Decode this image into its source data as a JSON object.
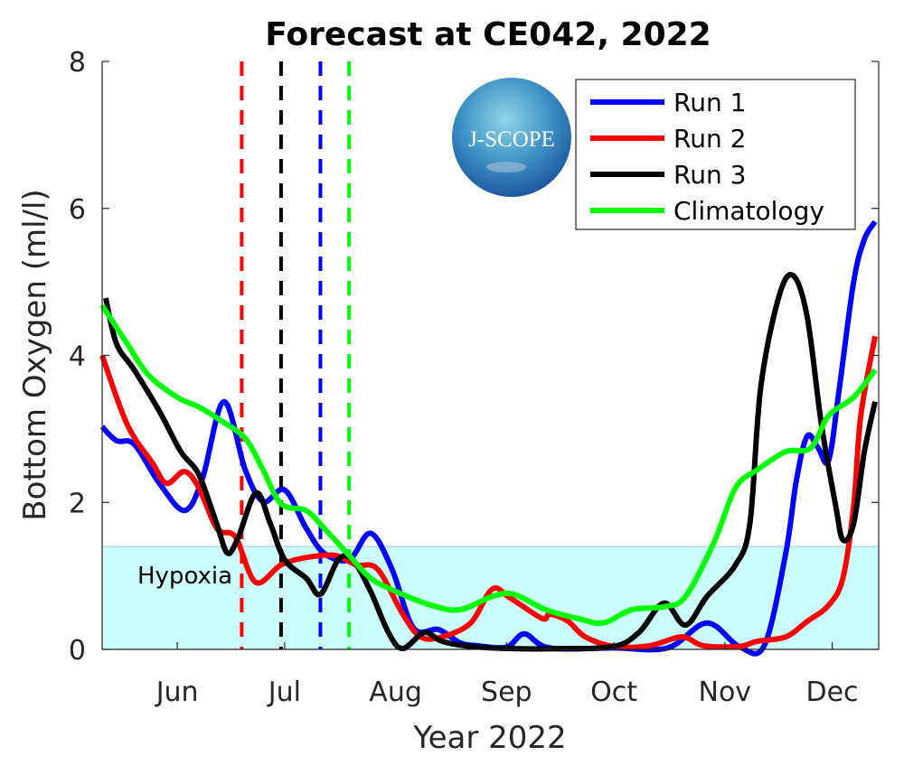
{
  "chart_data": {
    "type": "line",
    "title": "Forecast at CE042, 2022",
    "xlabel": "Year 2022",
    "ylabel": "Bottom Oxygen (ml/l)",
    "xlim": [
      "2022-05-11",
      "2022-12-14"
    ],
    "ylim": [
      0,
      8
    ],
    "yticks": [
      0,
      2,
      4,
      6,
      8
    ],
    "xticks": [
      {
        "date": "2022-06-01",
        "label": "Jun"
      },
      {
        "date": "2022-07-01",
        "label": "Jul"
      },
      {
        "date": "2022-08-01",
        "label": "Aug"
      },
      {
        "date": "2022-09-01",
        "label": "Sep"
      },
      {
        "date": "2022-10-01",
        "label": "Oct"
      },
      {
        "date": "2022-11-01",
        "label": "Nov"
      },
      {
        "date": "2022-12-01",
        "label": "Dec"
      }
    ],
    "grid": false,
    "legend_position": "top-right",
    "hypoxia": {
      "label": "Hypoxia",
      "threshold": 1.4,
      "color": "#ccffff"
    },
    "forecast_start_lines": [
      {
        "date": "2022-06-19",
        "color": "#ff0000"
      },
      {
        "date": "2022-06-30",
        "color": "#000000"
      },
      {
        "date": "2022-07-11",
        "color": "#0000ff"
      },
      {
        "date": "2022-07-19",
        "color": "#00ff00"
      }
    ],
    "series": [
      {
        "name": "Run 1",
        "color": "#0000ff",
        "points": [
          [
            "2022-05-11",
            3.03
          ],
          [
            "2022-05-15",
            2.84
          ],
          [
            "2022-05-20",
            2.79
          ],
          [
            "2022-05-27",
            2.26
          ],
          [
            "2022-06-03",
            1.89
          ],
          [
            "2022-06-08",
            2.32
          ],
          [
            "2022-06-14",
            3.37
          ],
          [
            "2022-06-20",
            2.44
          ],
          [
            "2022-06-25",
            2.01
          ],
          [
            "2022-07-01",
            2.17
          ],
          [
            "2022-07-07",
            1.65
          ],
          [
            "2022-07-12",
            1.31
          ],
          [
            "2022-07-19",
            1.22
          ],
          [
            "2022-07-25",
            1.58
          ],
          [
            "2022-07-31",
            1.09
          ],
          [
            "2022-08-06",
            0.29
          ],
          [
            "2022-08-13",
            0.27
          ],
          [
            "2022-08-19",
            0.09
          ],
          [
            "2022-08-24",
            0.05
          ],
          [
            "2022-09-01",
            0.03
          ],
          [
            "2022-09-06",
            0.21
          ],
          [
            "2022-09-13",
            0.02
          ],
          [
            "2022-10-01",
            0.02
          ],
          [
            "2022-10-16",
            0.02
          ],
          [
            "2022-10-27",
            0.36
          ],
          [
            "2022-11-05",
            0.04
          ],
          [
            "2022-11-12",
            0.05
          ],
          [
            "2022-11-18",
            1.3
          ],
          [
            "2022-11-21",
            2.3
          ],
          [
            "2022-11-24",
            2.9
          ],
          [
            "2022-11-27",
            2.75
          ],
          [
            "2022-11-30",
            2.57
          ],
          [
            "2022-12-03",
            3.55
          ],
          [
            "2022-12-07",
            5.0
          ],
          [
            "2022-12-10",
            5.58
          ],
          [
            "2022-12-13",
            5.82
          ]
        ]
      },
      {
        "name": "Run 2",
        "color": "#ff0000",
        "points": [
          [
            "2022-05-11",
            4.0
          ],
          [
            "2022-05-18",
            3.06
          ],
          [
            "2022-05-25",
            2.54
          ],
          [
            "2022-05-29",
            2.26
          ],
          [
            "2022-06-03",
            2.42
          ],
          [
            "2022-06-07",
            2.2
          ],
          [
            "2022-06-12",
            1.65
          ],
          [
            "2022-06-16",
            1.58
          ],
          [
            "2022-06-18",
            1.46
          ],
          [
            "2022-06-23",
            0.91
          ],
          [
            "2022-06-30",
            1.15
          ],
          [
            "2022-07-07",
            1.25
          ],
          [
            "2022-07-15",
            1.28
          ],
          [
            "2022-07-21",
            1.15
          ],
          [
            "2022-07-27",
            1.09
          ],
          [
            "2022-08-03",
            0.48
          ],
          [
            "2022-08-08",
            0.17
          ],
          [
            "2022-08-14",
            0.17
          ],
          [
            "2022-08-22",
            0.36
          ],
          [
            "2022-08-28",
            0.82
          ],
          [
            "2022-09-02",
            0.7
          ],
          [
            "2022-09-11",
            0.42
          ],
          [
            "2022-09-13",
            0.48
          ],
          [
            "2022-09-18",
            0.39
          ],
          [
            "2022-09-23",
            0.17
          ],
          [
            "2022-10-01",
            0.04
          ],
          [
            "2022-10-11",
            0.05
          ],
          [
            "2022-10-20",
            0.17
          ],
          [
            "2022-10-26",
            0.05
          ],
          [
            "2022-11-05",
            0.04
          ],
          [
            "2022-11-10",
            0.11
          ],
          [
            "2022-11-18",
            0.17
          ],
          [
            "2022-11-24",
            0.38
          ],
          [
            "2022-11-30",
            0.6
          ],
          [
            "2022-12-04",
            0.97
          ],
          [
            "2022-12-07",
            1.95
          ],
          [
            "2022-12-09",
            3.18
          ],
          [
            "2022-12-13",
            4.26
          ]
        ]
      },
      {
        "name": "Run 3",
        "color": "#000000",
        "points": [
          [
            "2022-05-12",
            4.78
          ],
          [
            "2022-05-15",
            4.16
          ],
          [
            "2022-05-20",
            3.8
          ],
          [
            "2022-05-27",
            3.24
          ],
          [
            "2022-06-02",
            2.69
          ],
          [
            "2022-06-07",
            2.38
          ],
          [
            "2022-06-12",
            1.71
          ],
          [
            "2022-06-15",
            1.31
          ],
          [
            "2022-06-18",
            1.52
          ],
          [
            "2022-06-23",
            2.13
          ],
          [
            "2022-06-27",
            1.71
          ],
          [
            "2022-07-01",
            1.22
          ],
          [
            "2022-07-07",
            0.97
          ],
          [
            "2022-07-11",
            0.75
          ],
          [
            "2022-07-16",
            1.22
          ],
          [
            "2022-07-20",
            1.22
          ],
          [
            "2022-07-25",
            0.79
          ],
          [
            "2022-07-30",
            0.23
          ],
          [
            "2022-08-03",
            0.01
          ],
          [
            "2022-08-09",
            0.23
          ],
          [
            "2022-08-14",
            0.11
          ],
          [
            "2022-08-22",
            0.04
          ],
          [
            "2022-09-03",
            0.01
          ],
          [
            "2022-09-16",
            0.01
          ],
          [
            "2022-10-01",
            0.04
          ],
          [
            "2022-10-08",
            0.23
          ],
          [
            "2022-10-15",
            0.63
          ],
          [
            "2022-10-21",
            0.33
          ],
          [
            "2022-10-27",
            0.72
          ],
          [
            "2022-11-04",
            1.15
          ],
          [
            "2022-11-08",
            1.71
          ],
          [
            "2022-11-11",
            3.55
          ],
          [
            "2022-11-16",
            4.78
          ],
          [
            "2022-11-20",
            5.09
          ],
          [
            "2022-11-24",
            4.53
          ],
          [
            "2022-11-28",
            3.06
          ],
          [
            "2022-12-02",
            1.95
          ],
          [
            "2022-12-04",
            1.49
          ],
          [
            "2022-12-07",
            1.71
          ],
          [
            "2022-12-10",
            2.69
          ],
          [
            "2022-12-13",
            3.37
          ]
        ]
      },
      {
        "name": "Climatology",
        "color": "#00ff00",
        "points": [
          [
            "2022-05-11",
            4.68
          ],
          [
            "2022-05-18",
            4.16
          ],
          [
            "2022-05-24",
            3.73
          ],
          [
            "2022-06-01",
            3.43
          ],
          [
            "2022-06-07",
            3.3
          ],
          [
            "2022-06-13",
            3.12
          ],
          [
            "2022-06-20",
            2.87
          ],
          [
            "2022-06-25",
            2.44
          ],
          [
            "2022-06-30",
            1.98
          ],
          [
            "2022-07-07",
            1.89
          ],
          [
            "2022-07-12",
            1.65
          ],
          [
            "2022-07-19",
            1.28
          ],
          [
            "2022-07-25",
            0.97
          ],
          [
            "2022-08-01",
            0.79
          ],
          [
            "2022-08-11",
            0.6
          ],
          [
            "2022-08-19",
            0.54
          ],
          [
            "2022-08-28",
            0.72
          ],
          [
            "2022-09-03",
            0.75
          ],
          [
            "2022-09-12",
            0.54
          ],
          [
            "2022-09-21",
            0.42
          ],
          [
            "2022-09-28",
            0.36
          ],
          [
            "2022-10-06",
            0.54
          ],
          [
            "2022-10-15",
            0.58
          ],
          [
            "2022-10-21",
            0.72
          ],
          [
            "2022-10-29",
            1.46
          ],
          [
            "2022-11-04",
            2.2
          ],
          [
            "2022-11-10",
            2.44
          ],
          [
            "2022-11-18",
            2.69
          ],
          [
            "2022-11-25",
            2.74
          ],
          [
            "2022-11-30",
            3.18
          ],
          [
            "2022-12-07",
            3.43
          ],
          [
            "2022-12-13",
            3.8
          ]
        ]
      }
    ]
  },
  "logo": {
    "text": "J-SCOPE"
  }
}
